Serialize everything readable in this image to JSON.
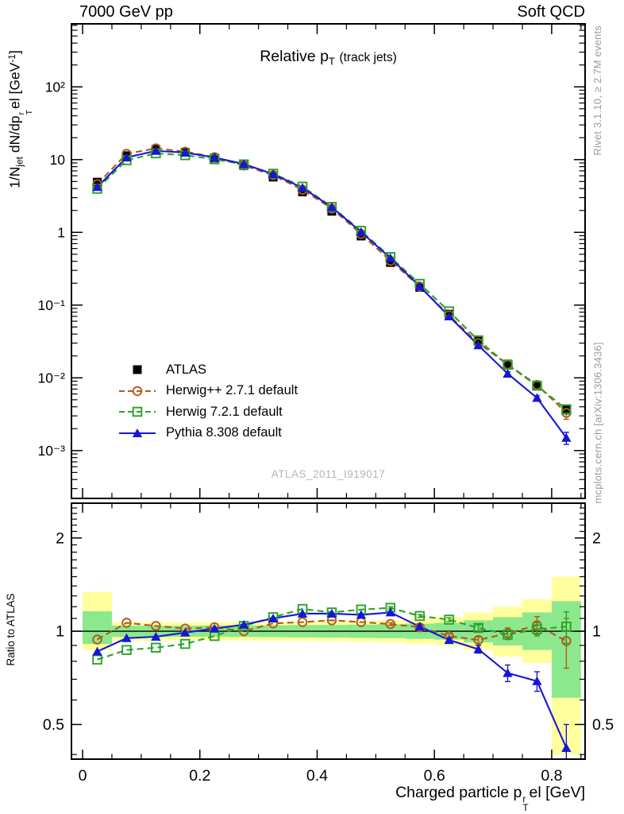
{
  "header": {
    "left": "7000 GeV pp",
    "right": "Soft QCD"
  },
  "plot_title": {
    "p1": "Relative p",
    "sub": "T",
    "p2": "(track jets)"
  },
  "y_title": {
    "p1": "1/N",
    "sub1": "jet",
    "p2": " dN/dp",
    "sup_stack": "r",
    "sub_stack": "T",
    "p3": "el [GeV",
    "sup2": "-1",
    "p4": "]"
  },
  "x_title": {
    "p1": "Charged particle p",
    "sup_stack": "r",
    "sub_stack": "T",
    "p2": "el [GeV]"
  },
  "ratio_axis_title": "Ratio to ATLAS",
  "side_notes": {
    "top": "Rivet 3.1.10, ≥ 2.7M events",
    "bottom": "mcplots.cern.ch [arXiv:1306.3436]"
  },
  "watermark": "ATLAS_2011_I919017",
  "chart_data": {
    "type": "line",
    "title": "Relative pT (track jets)",
    "xlabel": "Charged particle pT^rel [GeV]",
    "ylabel": "1/Njet dN/dpT^rel [GeV^-1]",
    "ratio_ylabel": "Ratio to ATLAS",
    "xlim": [
      -0.019,
      0.857
    ],
    "ylim_main": [
      0.00022,
      735
    ],
    "ylim_ratio": [
      0.3865,
      2.59
    ],
    "bin_width": 0.05,
    "x": [
      0.025,
      0.075,
      0.125,
      0.175,
      0.225,
      0.275,
      0.325,
      0.375,
      0.425,
      0.475,
      0.525,
      0.575,
      0.625,
      0.675,
      0.725,
      0.775,
      0.825
    ],
    "x_major_ticks": [
      0,
      0.2,
      0.4,
      0.6,
      0.8
    ],
    "x_tick_labels": [
      "0",
      "0.2",
      "0.4",
      "0.6",
      "0.8"
    ],
    "y_major_ticks": [
      100,
      10,
      1,
      0.1,
      0.01,
      0.001
    ],
    "y_tick_labels": [
      "10²",
      "10",
      "1",
      "10⁻¹",
      "10⁻²",
      "10⁻³"
    ],
    "ratio_major_ticks": [
      2,
      1,
      0.5
    ],
    "ratio_tick_labels": [
      "2",
      "1",
      "0.5"
    ],
    "ratio_minor_ticks": [
      0.4,
      0.6,
      0.7,
      0.8,
      0.9,
      1.1,
      1.2,
      1.3,
      1.4,
      1.5,
      1.6,
      1.7,
      1.8,
      1.9,
      2.1,
      2.2,
      2.3,
      2.4,
      2.5
    ],
    "unity_line": 1.0,
    "series": [
      {
        "name": "ATLAS",
        "color": "#000000",
        "marker": "square-filled",
        "line": "none",
        "values": [
          4.9,
          11.3,
          13.8,
          12.6,
          10.5,
          8.3,
          5.75,
          3.6,
          1.95,
          0.89,
          0.385,
          0.175,
          0.075,
          0.032,
          0.0155,
          0.0077,
          0.0036
        ]
      },
      {
        "name": "Herwig++ 2.7.1 default",
        "color": "#b05a1d",
        "marker": "circle-open",
        "line": "dashed",
        "values": [
          4.6,
          12.0,
          14.3,
          12.85,
          10.8,
          8.3,
          6.1,
          3.85,
          2.12,
          0.95,
          0.406,
          0.18,
          0.0724,
          0.03,
          0.0153,
          0.008,
          0.0033
        ],
        "ratio": [
          0.94,
          1.065,
          1.04,
          1.02,
          1.03,
          1.0,
          1.06,
          1.07,
          1.085,
          1.07,
          1.055,
          1.03,
          0.965,
          0.937,
          0.985,
          1.045,
          0.93
        ],
        "ratio_err": [
          0.004,
          0.004,
          0.004,
          0.004,
          0.004,
          0.005,
          0.005,
          0.006,
          0.007,
          0.008,
          0.01,
          0.012,
          0.016,
          0.022,
          0.04,
          0.07,
          0.17
        ]
      },
      {
        "name": "Herwig 7.2.1 default",
        "color": "#2aa22a",
        "marker": "square-open",
        "line": "dashed",
        "values": [
          3.97,
          9.8,
          12.2,
          11.5,
          10.1,
          8.6,
          6.4,
          4.25,
          2.24,
          1.05,
          0.458,
          0.196,
          0.082,
          0.0328,
          0.0151,
          0.0078,
          0.0037
        ],
        "ratio": [
          0.81,
          0.87,
          0.885,
          0.91,
          0.965,
          1.04,
          1.11,
          1.18,
          1.15,
          1.175,
          1.19,
          1.12,
          1.09,
          1.025,
          0.975,
          1.015,
          1.035
        ],
        "ratio_err": [
          0.004,
          0.004,
          0.004,
          0.004,
          0.004,
          0.005,
          0.005,
          0.006,
          0.007,
          0.008,
          0.01,
          0.012,
          0.016,
          0.022,
          0.035,
          0.05,
          0.12
        ]
      },
      {
        "name": "Pythia 8.308 default",
        "color": "#1616d8",
        "marker": "triangle-filled",
        "line": "solid",
        "values": [
          4.2,
          10.7,
          13.2,
          12.5,
          10.7,
          8.7,
          6.3,
          4.1,
          2.22,
          1.01,
          0.443,
          0.181,
          0.07,
          0.028,
          0.0114,
          0.0053,
          0.0015
        ],
        "ratio": [
          0.86,
          0.95,
          0.96,
          0.99,
          1.02,
          1.05,
          1.1,
          1.14,
          1.14,
          1.13,
          1.15,
          1.035,
          0.937,
          0.875,
          0.733,
          0.69,
          0.42
        ],
        "ratio_err": [
          0.004,
          0.004,
          0.004,
          0.004,
          0.004,
          0.005,
          0.005,
          0.006,
          0.007,
          0.008,
          0.01,
          0.012,
          0.016,
          0.025,
          0.045,
          0.05,
          0.08
        ]
      }
    ],
    "bands": {
      "yellow_color": "#ffff9d",
      "green_color": "#8ce88c",
      "bins": [
        {
          "x0": 0.0,
          "x1": 0.05,
          "y_lo": 0.87,
          "y_hi": 1.34,
          "g_lo": 0.91,
          "g_hi": 1.16
        },
        {
          "x0": 0.05,
          "x1": 0.1,
          "y_lo": 0.93,
          "y_hi": 1.07,
          "g_lo": 0.958,
          "g_hi": 1.042
        },
        {
          "x0": 0.1,
          "x1": 0.15,
          "y_lo": 0.93,
          "y_hi": 1.07,
          "g_lo": 0.958,
          "g_hi": 1.042
        },
        {
          "x0": 0.15,
          "x1": 0.2,
          "y_lo": 0.935,
          "y_hi": 1.067,
          "g_lo": 0.96,
          "g_hi": 1.042
        },
        {
          "x0": 0.2,
          "x1": 0.25,
          "y_lo": 0.935,
          "y_hi": 1.07,
          "g_lo": 0.96,
          "g_hi": 1.044
        },
        {
          "x0": 0.25,
          "x1": 0.3,
          "y_lo": 0.933,
          "y_hi": 1.07,
          "g_lo": 0.958,
          "g_hi": 1.044
        },
        {
          "x0": 0.3,
          "x1": 0.35,
          "y_lo": 0.93,
          "y_hi": 1.072,
          "g_lo": 0.957,
          "g_hi": 1.045
        },
        {
          "x0": 0.35,
          "x1": 0.4,
          "y_lo": 0.93,
          "y_hi": 1.075,
          "g_lo": 0.955,
          "g_hi": 1.047
        },
        {
          "x0": 0.4,
          "x1": 0.45,
          "y_lo": 0.928,
          "y_hi": 1.077,
          "g_lo": 0.954,
          "g_hi": 1.048
        },
        {
          "x0": 0.45,
          "x1": 0.5,
          "y_lo": 0.925,
          "y_hi": 1.08,
          "g_lo": 0.952,
          "g_hi": 1.05
        },
        {
          "x0": 0.5,
          "x1": 0.55,
          "y_lo": 0.92,
          "y_hi": 1.086,
          "g_lo": 0.95,
          "g_hi": 1.053
        },
        {
          "x0": 0.55,
          "x1": 0.6,
          "y_lo": 0.91,
          "y_hi": 1.1,
          "g_lo": 0.945,
          "g_hi": 1.058
        },
        {
          "x0": 0.6,
          "x1": 0.65,
          "y_lo": 0.9,
          "y_hi": 1.112,
          "g_lo": 0.94,
          "g_hi": 1.064
        },
        {
          "x0": 0.65,
          "x1": 0.7,
          "y_lo": 0.87,
          "y_hi": 1.15,
          "g_lo": 0.92,
          "g_hi": 1.085
        },
        {
          "x0": 0.7,
          "x1": 0.75,
          "y_lo": 0.83,
          "y_hi": 1.2,
          "g_lo": 0.9,
          "g_hi": 1.11
        },
        {
          "x0": 0.75,
          "x1": 0.8,
          "y_lo": 0.79,
          "y_hi": 1.27,
          "g_lo": 0.87,
          "g_hi": 1.15
        },
        {
          "x0": 0.8,
          "x1": 0.85,
          "y_lo": 0.4,
          "y_hi": 1.5,
          "g_lo": 0.61,
          "g_hi": 1.25
        }
      ]
    }
  }
}
